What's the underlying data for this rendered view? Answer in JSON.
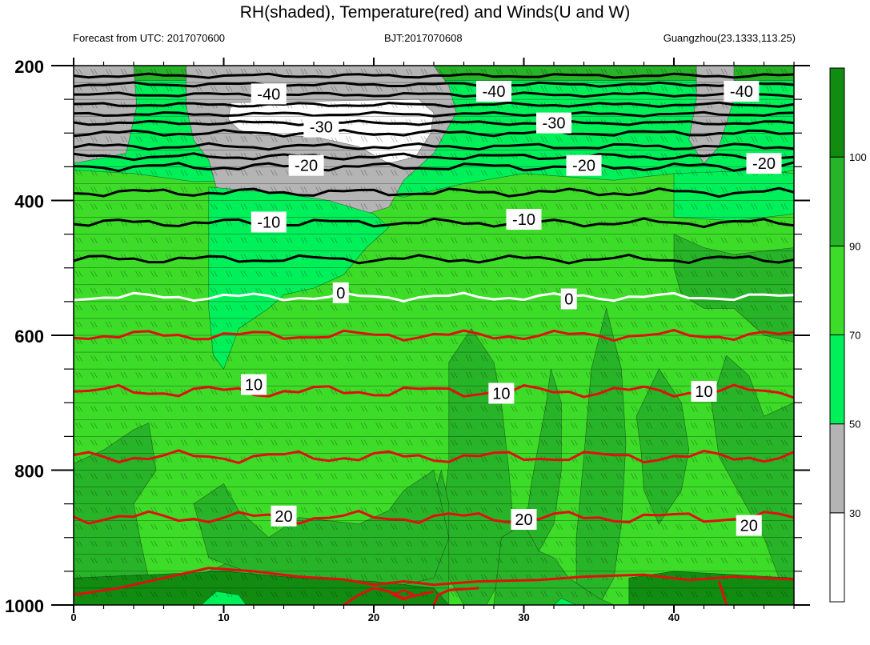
{
  "header": {
    "title": "RH(shaded), Temperature(red) and Winds(U and W)",
    "forecast": "Forecast from UTC: 2017070600",
    "bjt": "BJT:2017070608",
    "location": "Guangzhou(23.1333,113.25)"
  },
  "colors": {
    "rh_lt30": "#ffffff",
    "rh_30_50": "#b4b4b4",
    "rh_50_70": "#00f05a",
    "rh_70_90": "#3cdc28",
    "rh_90_100": "#28b428",
    "rh_gt100": "#118c11",
    "temperature": "#e01010",
    "temperature_below0": "#000000",
    "freezing": "#ffffff"
  },
  "chart_data": {
    "type": "heatmap",
    "x_ticks": [
      0,
      10,
      20,
      30,
      40
    ],
    "xlim": [
      0,
      48
    ],
    "y_ticks": [
      200,
      400,
      600,
      800,
      1000
    ],
    "ylim": [
      200,
      1000
    ],
    "y_inverted": true,
    "colorbar": {
      "levels": [
        30,
        50,
        70,
        90,
        100
      ],
      "labels": [
        "30",
        "50",
        "70",
        "90",
        "100"
      ]
    },
    "temperature_contours": [
      {
        "label": "-40",
        "level": -40,
        "pressure": 243
      },
      {
        "label": "-30",
        "level": -30,
        "pressure": 285
      },
      {
        "label": "-20",
        "level": -20,
        "pressure": 350
      },
      {
        "label": "-10",
        "level": -10,
        "pressure": 433
      },
      {
        "label": "0",
        "level": 0,
        "pressure": 543
      },
      {
        "label": "10",
        "level": 10,
        "pressure": 683
      },
      {
        "label": "20",
        "level": 20,
        "pressure": 868
      }
    ],
    "contour_labels": [
      {
        "text": "-40",
        "x": 13,
        "p": 242
      },
      {
        "text": "-40",
        "x": 28,
        "p": 238
      },
      {
        "text": "-40",
        "x": 44.5,
        "p": 238
      },
      {
        "text": "-30",
        "x": 16.5,
        "p": 291
      },
      {
        "text": "-30",
        "x": 32,
        "p": 285
      },
      {
        "text": "-20",
        "x": 15.5,
        "p": 348
      },
      {
        "text": "-20",
        "x": 34,
        "p": 348
      },
      {
        "text": "-20",
        "x": 46,
        "p": 345
      },
      {
        "text": "-10",
        "x": 13,
        "p": 432
      },
      {
        "text": "-10",
        "x": 30,
        "p": 428
      },
      {
        "text": "0",
        "x": 17.8,
        "p": 537
      },
      {
        "text": "0",
        "x": 33,
        "p": 546
      },
      {
        "text": "10",
        "x": 12,
        "p": 673
      },
      {
        "text": "10",
        "x": 28.5,
        "p": 686
      },
      {
        "text": "10",
        "x": 42,
        "p": 683
      },
      {
        "text": "20",
        "x": 14,
        "p": 868
      },
      {
        "text": "20",
        "x": 30,
        "p": 873
      },
      {
        "text": "20",
        "x": 45,
        "p": 882
      }
    ]
  }
}
